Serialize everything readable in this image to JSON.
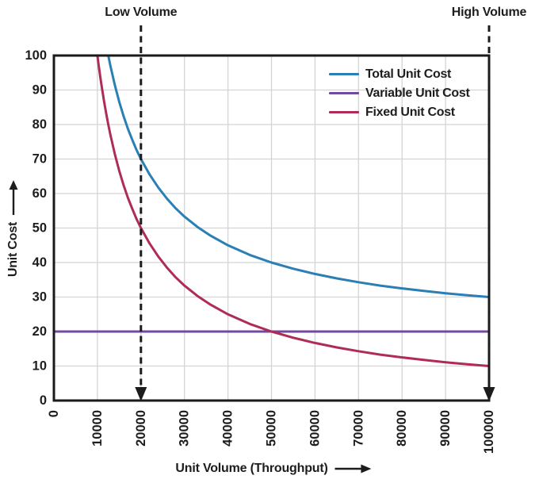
{
  "figure": {
    "background": "#ffffff",
    "text_color": "#1d1d1d",
    "grid_color": "#d4d4d4",
    "axis_color": "#1a1a1a",
    "annotation_line_color": "#1c1c1c"
  },
  "chart_data": {
    "type": "line",
    "title": "",
    "xlabel": "Unit Volume (Throughput)",
    "ylabel": "Unit Cost",
    "xlim": [
      0,
      100000
    ],
    "ylim": [
      0,
      100
    ],
    "x_ticks": [
      0,
      10000,
      20000,
      30000,
      40000,
      50000,
      60000,
      70000,
      80000,
      90000,
      100000
    ],
    "y_ticks": [
      0,
      10,
      20,
      30,
      40,
      50,
      60,
      70,
      80,
      90,
      100
    ],
    "grid": true,
    "legend_position": "upper-right-inside",
    "series": [
      {
        "name": "Total Unit Cost",
        "color": "#2a7fb5",
        "x": [
          12500,
          13000,
          14000,
          15000,
          16000,
          17000,
          18000,
          19000,
          20000,
          22000,
          24000,
          26000,
          28000,
          30000,
          33000,
          36000,
          40000,
          45000,
          50000,
          55000,
          60000,
          65000,
          70000,
          75000,
          80000,
          85000,
          90000,
          95000,
          100000
        ],
        "y": [
          100,
          96.9,
          91.4,
          86.7,
          82.5,
          78.8,
          75.6,
          72.6,
          70,
          65.5,
          61.7,
          58.5,
          55.7,
          53.3,
          50.3,
          47.8,
          45,
          42.2,
          40,
          38.2,
          36.7,
          35.4,
          34.3,
          33.3,
          32.5,
          31.8,
          31.1,
          30.5,
          30
        ]
      },
      {
        "name": "Variable Unit Cost",
        "color": "#714a9e",
        "x": [
          0,
          100000
        ],
        "y": [
          20,
          20
        ]
      },
      {
        "name": "Fixed Unit Cost",
        "color": "#ae2c55",
        "x": [
          10000,
          10300,
          10700,
          11000,
          11500,
          12000,
          12500,
          13000,
          14000,
          15000,
          16000,
          17000,
          18000,
          19000,
          20000,
          22000,
          24000,
          26000,
          28000,
          30000,
          33000,
          36000,
          40000,
          45000,
          50000,
          55000,
          60000,
          65000,
          70000,
          75000,
          80000,
          85000,
          90000,
          95000,
          100000
        ],
        "y": [
          100,
          97.1,
          93.5,
          90.9,
          87,
          83.3,
          80,
          76.9,
          71.4,
          66.7,
          62.5,
          58.8,
          55.6,
          52.6,
          50,
          45.5,
          41.7,
          38.5,
          35.7,
          33.3,
          30.3,
          27.8,
          25,
          22.2,
          20,
          18.2,
          16.7,
          15.4,
          14.3,
          13.3,
          12.5,
          11.8,
          11.1,
          10.5,
          10
        ]
      }
    ],
    "annotations": [
      {
        "label": "Low Volume",
        "x": 20000
      },
      {
        "label": "High Volume",
        "x": 100000
      }
    ]
  }
}
